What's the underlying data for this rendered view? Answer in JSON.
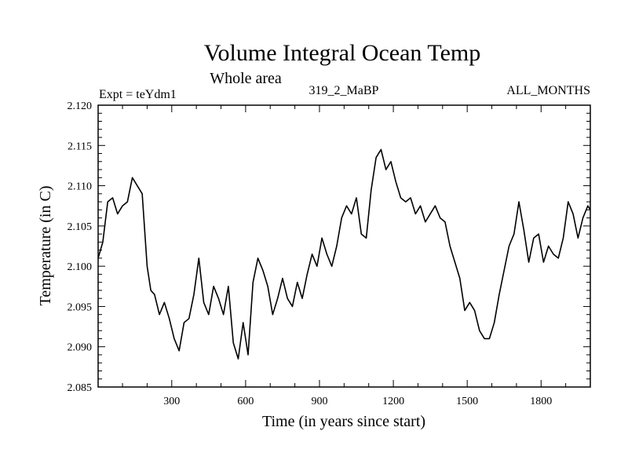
{
  "chart_data": {
    "type": "line",
    "title": "Volume Integral Ocean Temp",
    "subtitle": "Whole area",
    "annotations": {
      "left": "Expt = teYdm1",
      "center": "319_2_MaBP",
      "right": "ALL_MONTHS"
    },
    "xlabel": "Time (in years since start)",
    "ylabel": "Temperature (in C)",
    "xlim": [
      1,
      2000
    ],
    "ylim": [
      2.085,
      2.12
    ],
    "x_ticks": [
      300,
      600,
      900,
      1200,
      1500,
      1800
    ],
    "x_tick_labels": [
      "300",
      "600",
      "900",
      "1200",
      "1500",
      "1800"
    ],
    "y_ticks": [
      2.085,
      2.09,
      2.095,
      2.1,
      2.105,
      2.11,
      2.115,
      2.12
    ],
    "y_tick_labels": [
      "2.085",
      "2.090",
      "2.095",
      "2.100",
      "2.105",
      "2.110",
      "2.115",
      "2.120"
    ],
    "line_color": "#000000",
    "series": [
      {
        "name": "Volume Integral Ocean Temp",
        "x": [
          1,
          20,
          40,
          60,
          80,
          100,
          120,
          140,
          160,
          180,
          200,
          215,
          230,
          250,
          270,
          290,
          310,
          330,
          350,
          370,
          390,
          410,
          430,
          450,
          470,
          490,
          510,
          530,
          550,
          570,
          590,
          610,
          630,
          650,
          670,
          690,
          710,
          730,
          750,
          770,
          790,
          810,
          830,
          850,
          870,
          890,
          910,
          930,
          950,
          970,
          990,
          1010,
          1030,
          1050,
          1070,
          1090,
          1110,
          1130,
          1150,
          1170,
          1190,
          1210,
          1230,
          1250,
          1270,
          1290,
          1310,
          1330,
          1350,
          1370,
          1390,
          1410,
          1430,
          1450,
          1470,
          1490,
          1510,
          1530,
          1550,
          1570,
          1590,
          1610,
          1630,
          1650,
          1670,
          1690,
          1710,
          1730,
          1750,
          1770,
          1790,
          1810,
          1830,
          1850,
          1870,
          1890,
          1910,
          1930,
          1950,
          1970,
          1990,
          2000
        ],
        "values": [
          2.101,
          2.103,
          2.108,
          2.1085,
          2.1065,
          2.1075,
          2.108,
          2.111,
          2.11,
          2.109,
          2.1,
          2.097,
          2.0965,
          2.094,
          2.0955,
          2.0935,
          2.091,
          2.0895,
          2.093,
          2.0935,
          2.0965,
          2.101,
          2.0955,
          2.094,
          2.0975,
          2.096,
          2.094,
          2.0975,
          2.0905,
          2.0885,
          2.093,
          2.089,
          2.098,
          2.101,
          2.0995,
          2.0975,
          2.094,
          2.096,
          2.0985,
          2.096,
          2.095,
          2.098,
          2.096,
          2.099,
          2.1015,
          2.1,
          2.1035,
          2.1015,
          2.1,
          2.1025,
          2.106,
          2.1075,
          2.1065,
          2.1085,
          2.104,
          2.1035,
          2.1095,
          2.1135,
          2.1145,
          2.112,
          2.113,
          2.1105,
          2.1085,
          2.108,
          2.1085,
          2.1065,
          2.1075,
          2.1055,
          2.1065,
          2.1075,
          2.106,
          2.1055,
          2.1025,
          2.1005,
          2.0985,
          2.0945,
          2.0955,
          2.0945,
          2.092,
          2.091,
          2.091,
          2.093,
          2.0965,
          2.0995,
          2.1025,
          2.104,
          2.108,
          2.1045,
          2.1005,
          2.1035,
          2.104,
          2.1005,
          2.1025,
          2.1015,
          2.101,
          2.1035,
          2.108,
          2.1065,
          2.1035,
          2.106,
          2.1075,
          2.107
        ]
      }
    ]
  }
}
